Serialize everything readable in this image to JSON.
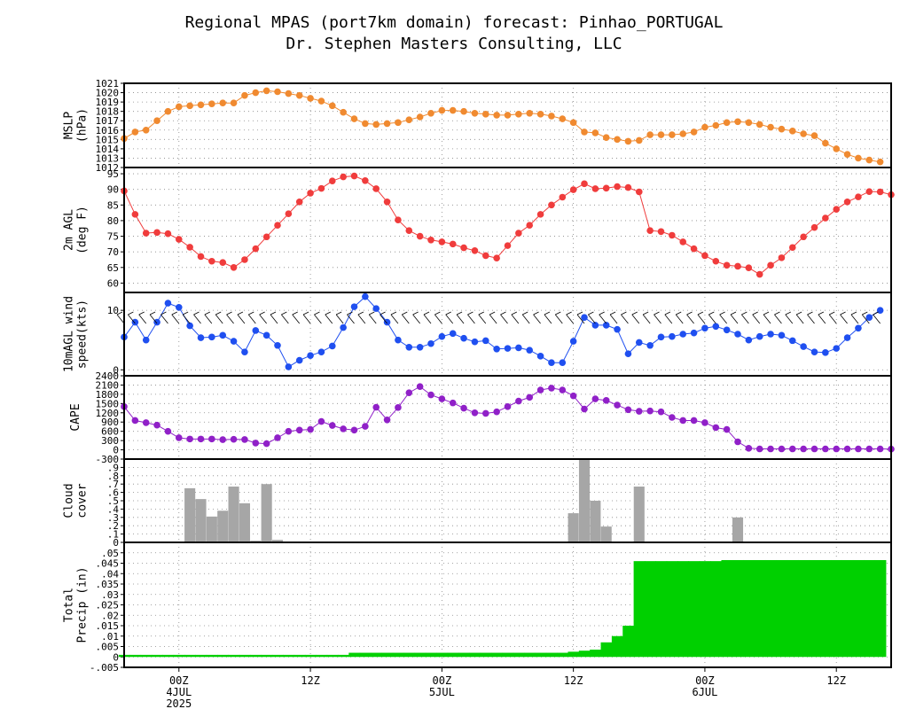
{
  "title": "Regional MPAS (port7km domain) forecast: Pinhao_PORTUGAL",
  "subtitle": "Dr. Stephen Masters Consulting, LLC",
  "x_axis": {
    "ticks": [
      {
        "h": 0,
        "lines": [
          "00Z",
          "4JUL",
          "2025"
        ]
      },
      {
        "h": 12,
        "lines": [
          "12Z"
        ]
      },
      {
        "h": 24,
        "lines": [
          "00Z",
          "5JUL"
        ]
      },
      {
        "h": 36,
        "lines": [
          "12Z"
        ]
      },
      {
        "h": 48,
        "lines": [
          "00Z",
          "6JUL"
        ]
      },
      {
        "h": 60,
        "lines": [
          "12Z"
        ]
      }
    ],
    "range_hours": [
      -5,
      65
    ]
  },
  "colors": {
    "mslp": "#f08a30",
    "temp": "#f03c3c",
    "wind": "#1f4ff0",
    "cape": "#9020c8",
    "cloud": "#a6a6a6",
    "precip": "#00d000"
  },
  "chart_data": [
    {
      "id": "mslp",
      "type": "line",
      "ylabel": [
        "MSLP",
        "(hPa)"
      ],
      "ylim": [
        1012,
        1021
      ],
      "yticks": [
        1012,
        1013,
        1014,
        1015,
        1016,
        1017,
        1018,
        1019,
        1020,
        1021
      ],
      "x_start": -5,
      "x_step": 1,
      "values": [
        1015.1,
        1015.8,
        1016.0,
        1017.0,
        1018.0,
        1018.5,
        1018.6,
        1018.7,
        1018.8,
        1018.9,
        1018.9,
        1019.7,
        1020.0,
        1020.2,
        1020.1,
        1019.9,
        1019.7,
        1019.4,
        1019.1,
        1018.6,
        1017.9,
        1017.2,
        1016.7,
        1016.6,
        1016.7,
        1016.8,
        1017.1,
        1017.4,
        1017.8,
        1018.1,
        1018.1,
        1018.0,
        1017.8,
        1017.7,
        1017.6,
        1017.6,
        1017.7,
        1017.8,
        1017.7,
        1017.5,
        1017.2,
        1016.8,
        1015.8,
        1015.7,
        1015.2,
        1015.0,
        1014.8,
        1014.9,
        1015.5,
        1015.5,
        1015.5,
        1015.6,
        1015.8,
        1016.3,
        1016.5,
        1016.8,
        1016.9,
        1016.8,
        1016.6,
        1016.3,
        1016.1,
        1015.9,
        1015.6,
        1015.4,
        1014.6,
        1014.0,
        1013.4,
        1013.0,
        1012.8,
        1012.6
      ]
    },
    {
      "id": "temp",
      "type": "line",
      "ylabel": [
        "2m AGL",
        "(deg F)"
      ],
      "ylim": [
        57,
        97
      ],
      "yticks": [
        60,
        65,
        70,
        75,
        80,
        85,
        90,
        95
      ],
      "x_start": -5,
      "x_step": 1,
      "values": [
        89.5,
        82.0,
        76.0,
        76.2,
        75.8,
        74.0,
        71.5,
        68.5,
        67.0,
        66.6,
        65.0,
        67.5,
        71.0,
        74.8,
        78.5,
        82.2,
        86.0,
        88.8,
        90.3,
        92.7,
        94.0,
        94.3,
        92.8,
        90.2,
        86.0,
        80.2,
        76.8,
        75.0,
        73.8,
        73.2,
        72.5,
        71.3,
        70.4,
        68.8,
        68.0,
        72.0,
        76.0,
        78.5,
        82.0,
        85.0,
        87.5,
        89.9,
        91.8,
        90.2,
        90.4,
        90.9,
        90.6,
        89.2,
        76.8,
        76.5,
        75.3,
        73.2,
        71.0,
        68.8,
        67.0,
        65.7,
        65.4,
        64.9,
        62.8,
        65.7,
        68.1,
        71.4,
        74.8,
        77.8,
        80.8,
        83.6,
        86.0,
        87.6,
        89.3,
        89.2,
        88.3
      ]
    },
    {
      "id": "wind",
      "type": "line",
      "ylabel": [
        "10mAGL wind",
        "speed(kts)"
      ],
      "ylim": [
        -1,
        13
      ],
      "yticks": [
        0,
        10
      ],
      "x_start": -5,
      "x_step": 1,
      "values": [
        5.5,
        8.0,
        5.0,
        8.0,
        11.2,
        10.5,
        7.4,
        5.4,
        5.5,
        5.8,
        4.8,
        3.0,
        6.6,
        5.8,
        4.1,
        0.5,
        1.6,
        2.4,
        3.0,
        4.0,
        7.1,
        10.6,
        12.3,
        10.3,
        8.0,
        5.0,
        3.8,
        3.8,
        4.4,
        5.6,
        6.1,
        5.3,
        4.7,
        4.9,
        3.5,
        3.6,
        3.7,
        3.3,
        2.3,
        1.2,
        1.2,
        4.8,
        8.8,
        7.5,
        7.5,
        6.8,
        2.7,
        4.6,
        4.1,
        5.5,
        5.6,
        6.0,
        6.2,
        7.0,
        7.3,
        6.7,
        6.0,
        5.0,
        5.6,
        6.0,
        5.8,
        4.9,
        3.9,
        3.0,
        2.9,
        3.6,
        5.4,
        7.0,
        8.8,
        10.0
      ]
    },
    {
      "id": "cape",
      "type": "line",
      "ylabel": [
        "CAPE"
      ],
      "ylim": [
        -300,
        2400
      ],
      "yticks": [
        -300,
        0,
        300,
        600,
        900,
        1200,
        1500,
        1800,
        2100,
        2400
      ],
      "x_start": -5,
      "x_step": 1,
      "values": [
        1400,
        950,
        880,
        800,
        600,
        390,
        350,
        350,
        350,
        330,
        340,
        335,
        220,
        200,
        390,
        600,
        640,
        660,
        920,
        790,
        680,
        640,
        760,
        1380,
        970,
        1370,
        1850,
        2050,
        1780,
        1650,
        1520,
        1350,
        1200,
        1180,
        1230,
        1400,
        1580,
        1700,
        1940,
        2000,
        1940,
        1750,
        1320,
        1650,
        1600,
        1450,
        1300,
        1250,
        1260,
        1230,
        1050,
        950,
        950,
        880,
        720,
        660,
        260,
        50,
        30,
        30,
        30,
        30,
        30,
        30,
        30,
        30,
        30,
        30,
        30,
        30,
        25
      ]
    },
    {
      "id": "cloud",
      "type": "bar",
      "ylabel": [
        "Cloud",
        "cover"
      ],
      "ylim": [
        0,
        1
      ],
      "yticks": [
        0,
        0.1,
        0.2,
        0.3,
        0.4,
        0.5,
        0.6,
        0.7,
        0.8,
        0.9
      ],
      "x_start": -5,
      "x_step": 1,
      "values": [
        0,
        0,
        0,
        0,
        0,
        0,
        0.65,
        0.52,
        0.31,
        0.38,
        0.67,
        0.47,
        0.02,
        0.7,
        0.03,
        0,
        0,
        0,
        0,
        0,
        0,
        0,
        0,
        0,
        0,
        0,
        0,
        0,
        0,
        0,
        0,
        0,
        0,
        0,
        0,
        0,
        0,
        0,
        0,
        0,
        0,
        0.35,
        1.0,
        0.5,
        0.19,
        0,
        0,
        0.67,
        0,
        0,
        0,
        0,
        0,
        0,
        0,
        0,
        0.3,
        0,
        0,
        0,
        0,
        0,
        0,
        0,
        0,
        0,
        0,
        0,
        0,
        0
      ]
    },
    {
      "id": "precip",
      "type": "area",
      "ylabel": [
        "Total",
        "Precip (in)"
      ],
      "ylim": [
        -0.005,
        0.055
      ],
      "yticks": [
        -0.005,
        0,
        0.005,
        0.01,
        0.015,
        0.02,
        0.025,
        0.03,
        0.035,
        0.04,
        0.045,
        0.05
      ],
      "x_start": -5,
      "x_step": 1,
      "values": [
        0.001,
        0.001,
        0.001,
        0.001,
        0.001,
        0.001,
        0.001,
        0.001,
        0.001,
        0.001,
        0.001,
        0.001,
        0.001,
        0.001,
        0.001,
        0.001,
        0.001,
        0.001,
        0.001,
        0.001,
        0.001,
        0.002,
        0.002,
        0.002,
        0.002,
        0.002,
        0.002,
        0.002,
        0.002,
        0.002,
        0.002,
        0.002,
        0.002,
        0.002,
        0.002,
        0.002,
        0.002,
        0.002,
        0.002,
        0.002,
        0.002,
        0.0025,
        0.003,
        0.0035,
        0.007,
        0.01,
        0.015,
        0.046,
        0.046,
        0.046,
        0.046,
        0.046,
        0.046,
        0.046,
        0.046,
        0.0465,
        0.0465,
        0.0465,
        0.0465,
        0.0465,
        0.0465,
        0.0465,
        0.0465,
        0.0465,
        0.0465,
        0.0465,
        0.0465,
        0.0465,
        0.0465,
        0.0465
      ]
    }
  ]
}
